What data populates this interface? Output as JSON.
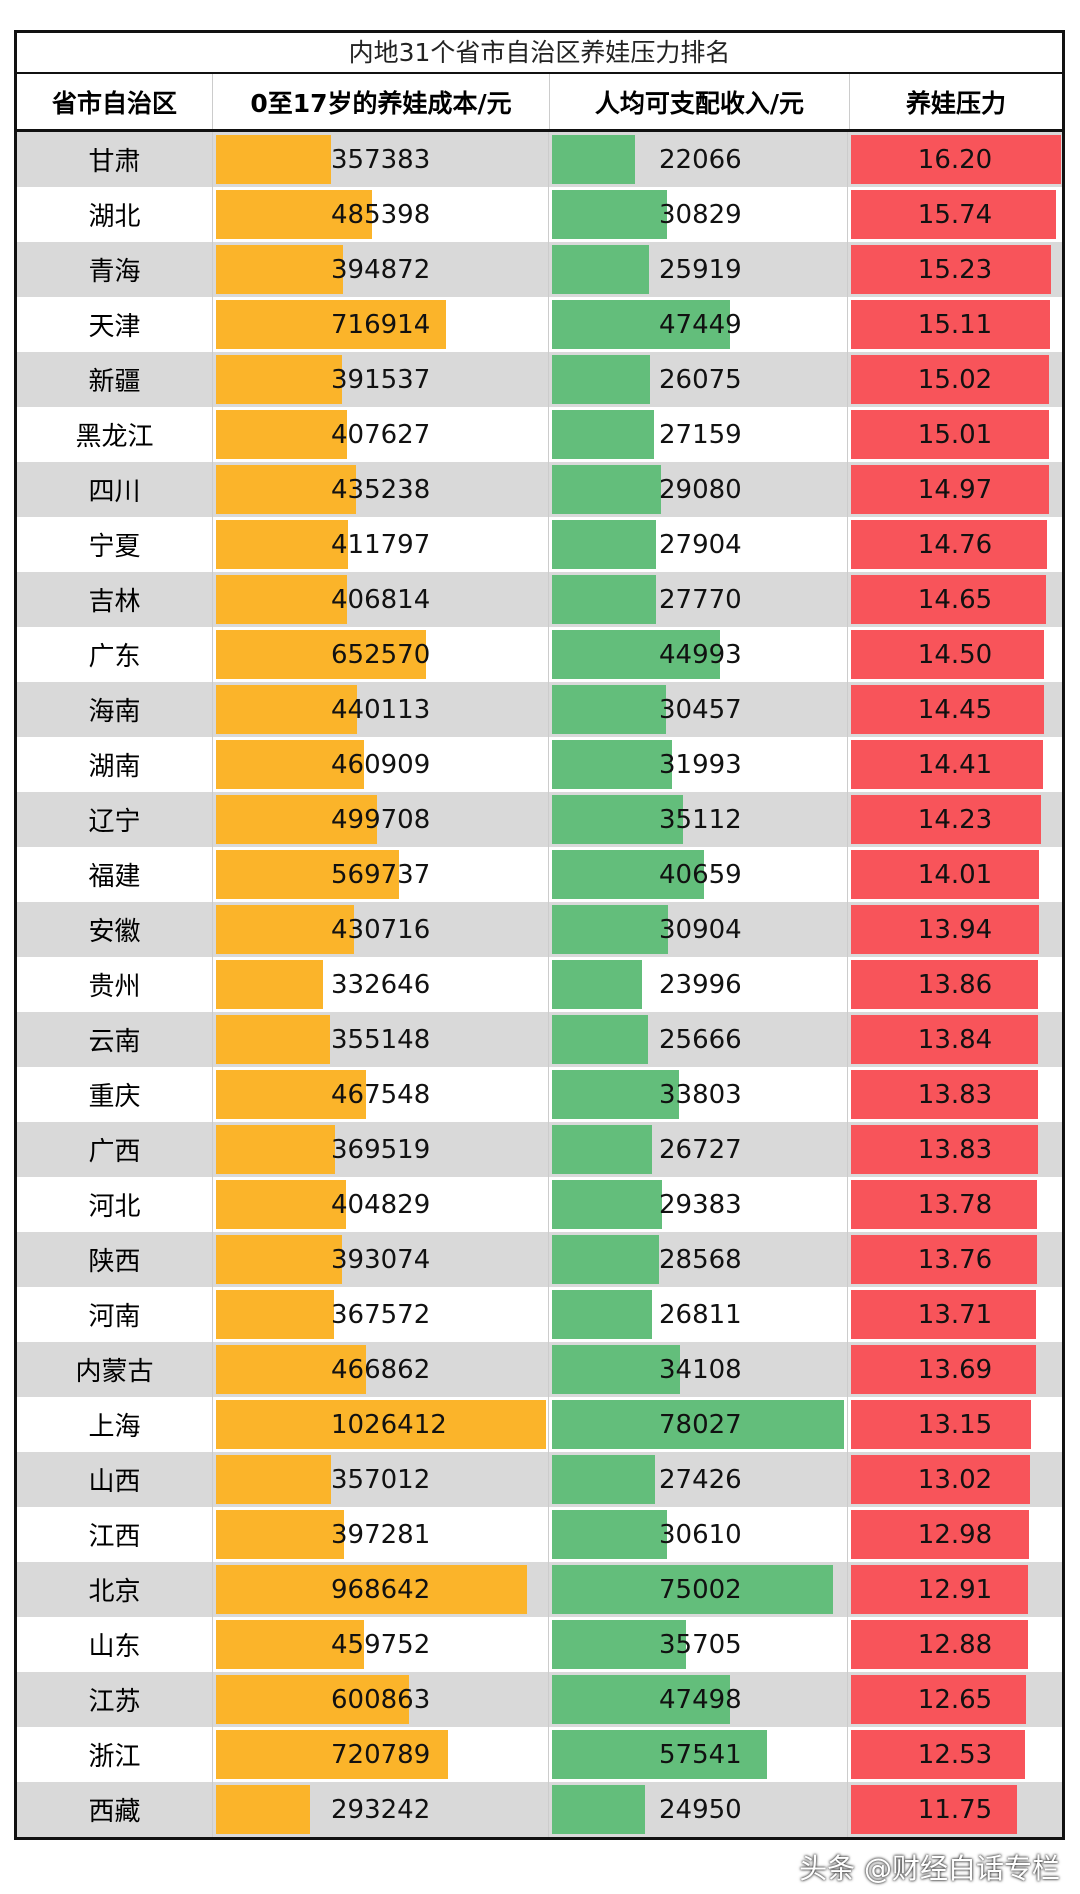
{
  "chart_data": {
    "type": "table",
    "title": "内地31个省市自治区养娃压力排名",
    "columns": [
      "省市自治区",
      "0至17岁的养娃成本/元",
      "人均可支配收入/元",
      "养娃压力"
    ],
    "colors": {
      "cost": "#FBB42A",
      "income": "#63BE7B",
      "pressure": "#F8545A",
      "alt_row": "#D9D9D9"
    },
    "rows": [
      [
        "甘肃",
        357383,
        22066,
        "16.20"
      ],
      [
        "湖北",
        485398,
        30829,
        "15.74"
      ],
      [
        "青海",
        394872,
        25919,
        "15.23"
      ],
      [
        "天津",
        716914,
        47449,
        "15.11"
      ],
      [
        "新疆",
        391537,
        26075,
        "15.02"
      ],
      [
        "黑龙江",
        407627,
        27159,
        "15.01"
      ],
      [
        "四川",
        435238,
        29080,
        "14.97"
      ],
      [
        "宁夏",
        411797,
        27904,
        "14.76"
      ],
      [
        "吉林",
        406814,
        27770,
        "14.65"
      ],
      [
        "广东",
        652570,
        44993,
        "14.50"
      ],
      [
        "海南",
        440113,
        30457,
        "14.45"
      ],
      [
        "湖南",
        460909,
        31993,
        "14.41"
      ],
      [
        "辽宁",
        499708,
        35112,
        "14.23"
      ],
      [
        "福建",
        569737,
        40659,
        "14.01"
      ],
      [
        "安徽",
        430716,
        30904,
        "13.94"
      ],
      [
        "贵州",
        332646,
        23996,
        "13.86"
      ],
      [
        "云南",
        355148,
        25666,
        "13.84"
      ],
      [
        "重庆",
        467548,
        33803,
        "13.83"
      ],
      [
        "广西",
        369519,
        26727,
        "13.83"
      ],
      [
        "河北",
        404829,
        29383,
        "13.78"
      ],
      [
        "陕西",
        393074,
        28568,
        "13.76"
      ],
      [
        "河南",
        367572,
        26811,
        "13.71"
      ],
      [
        "内蒙古",
        466862,
        34108,
        "13.69"
      ],
      [
        "上海",
        1026412,
        78027,
        "13.15"
      ],
      [
        "山西",
        357012,
        27426,
        "13.02"
      ],
      [
        "江西",
        397281,
        30610,
        "12.98"
      ],
      [
        "北京",
        968642,
        75002,
        "12.91"
      ],
      [
        "山东",
        459752,
        35705,
        "12.88"
      ],
      [
        "江苏",
        600863,
        47498,
        "12.65"
      ],
      [
        "浙江",
        720789,
        57541,
        "12.53"
      ],
      [
        "西藏",
        293242,
        24950,
        "11.75"
      ]
    ]
  },
  "watermark": "头条 @财经白话专栏"
}
